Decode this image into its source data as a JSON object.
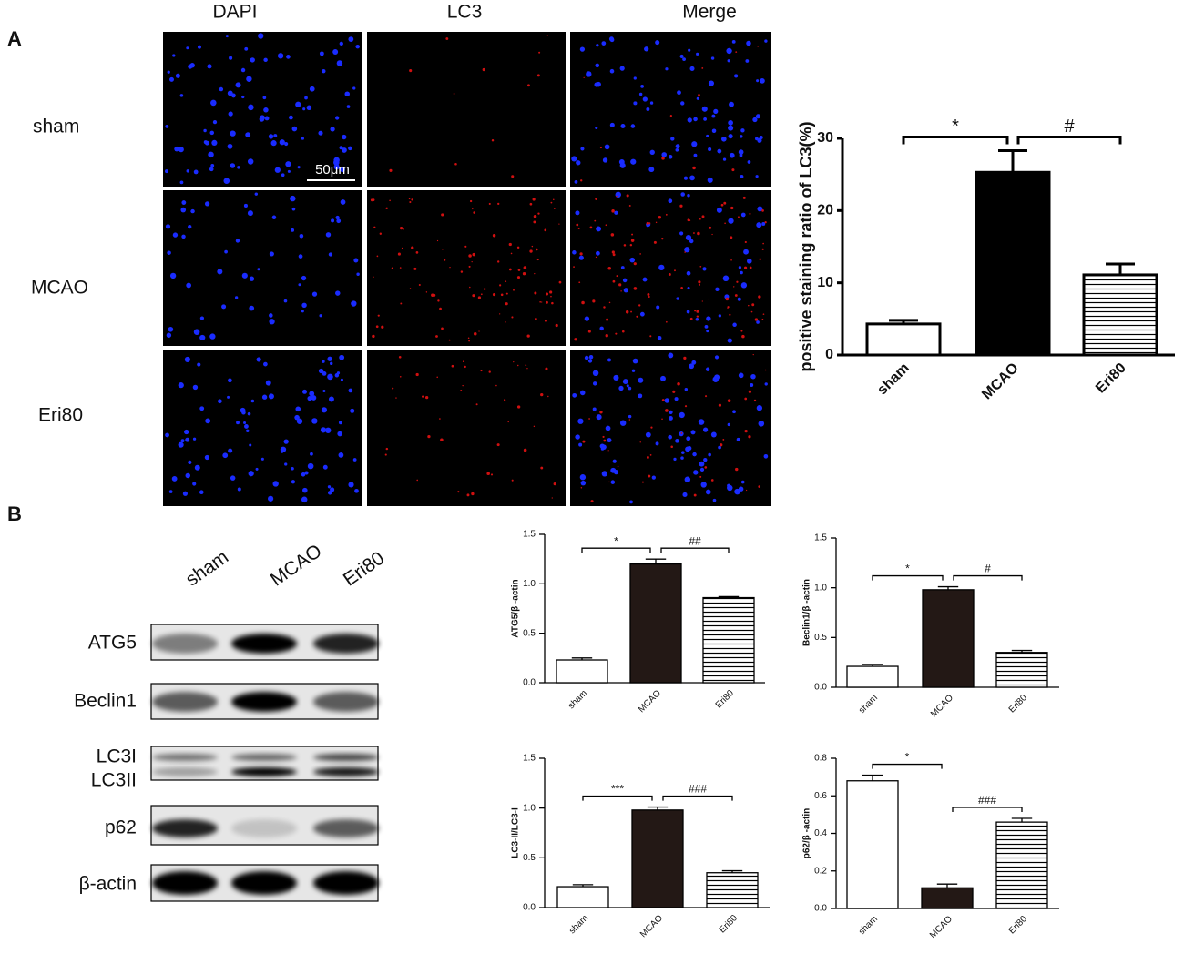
{
  "panel_labels": [
    "A",
    "B"
  ],
  "images": {
    "columns": [
      "DAPI",
      "LC3",
      "Merge"
    ],
    "rows": [
      "sham",
      "MCAO",
      "Eri80"
    ],
    "scale_bar": "50μm"
  },
  "blot": {
    "lanes": [
      "sham",
      "MCAO",
      "Eri80"
    ],
    "bands": [
      "ATG5",
      "Beclin1",
      "LC3I",
      "LC3II",
      "p62",
      "β-actin"
    ]
  },
  "chart_data": [
    {
      "type": "bar",
      "y_label": "positive staining ratio of LC3(%)",
      "categories": [
        "sham",
        "MCAO",
        "Eri80"
      ],
      "values": [
        4.3,
        25.3,
        11.1
      ],
      "errors": [
        0.5,
        3.0,
        1.5
      ],
      "color": "#000000",
      "fills": [
        "open",
        "solid",
        "hatched"
      ],
      "ylim": [
        0,
        30
      ],
      "yticks": [
        0,
        10,
        20,
        30
      ],
      "significance": [
        {
          "label": "*",
          "groups": [
            "sham",
            "MCAO"
          ]
        },
        {
          "label": "#",
          "groups": [
            "MCAO",
            "Eri80"
          ]
        }
      ]
    },
    {
      "type": "bar",
      "y_label": "ATG5/β -actin",
      "categories": [
        "sham",
        "MCAO",
        "Eri80"
      ],
      "values": [
        0.23,
        1.2,
        0.86
      ],
      "errors": [
        0.02,
        0.05,
        0.01
      ],
      "color": "#231815",
      "fills": [
        "open",
        "solid",
        "hatched"
      ],
      "ylim": [
        0,
        1.5
      ],
      "yticks": [
        {
          "value": 0,
          "label": "0.0"
        },
        {
          "value": 0.5,
          "label": "0.5"
        },
        {
          "value": 1,
          "label": "1.0"
        },
        {
          "value": 1.5,
          "label": "1.5"
        }
      ],
      "significance": [
        {
          "label": "*",
          "groups": [
            "sham",
            "MCAO"
          ]
        },
        {
          "label": "##",
          "groups": [
            "MCAO",
            "Eri80"
          ]
        }
      ]
    },
    {
      "type": "bar",
      "y_label": "Beclin1/β -actin",
      "categories": [
        "sham",
        "MCAO",
        "Eri80"
      ],
      "values": [
        0.21,
        0.98,
        0.35
      ],
      "errors": [
        0.02,
        0.03,
        0.02
      ],
      "color": "#231815",
      "fills": [
        "open",
        "solid",
        "hatched"
      ],
      "ylim": [
        0,
        1.5
      ],
      "yticks": [
        {
          "value": 0,
          "label": "0.0"
        },
        {
          "value": 0.5,
          "label": "0.5"
        },
        {
          "value": 1,
          "label": "1.0"
        },
        {
          "value": 1.5,
          "label": "1.5"
        }
      ],
      "significance": [
        {
          "label": "*",
          "groups": [
            "sham",
            "MCAO"
          ]
        },
        {
          "label": "#",
          "groups": [
            "MCAO",
            "Eri80"
          ]
        }
      ]
    },
    {
      "type": "bar",
      "y_label": "LC3-II/LC3-I",
      "categories": [
        "sham",
        "MCAO",
        "Eri80"
      ],
      "values": [
        0.21,
        0.98,
        0.35
      ],
      "errors": [
        0.02,
        0.03,
        0.02
      ],
      "color": "#231815",
      "fills": [
        "open",
        "solid",
        "hatched"
      ],
      "ylim": [
        0,
        1.5
      ],
      "yticks": [
        {
          "value": 0,
          "label": "0.0"
        },
        {
          "value": 0.5,
          "label": "0.5"
        },
        {
          "value": 1,
          "label": "1.0"
        },
        {
          "value": 1.5,
          "label": "1.5"
        }
      ],
      "significance": [
        {
          "label": "***",
          "groups": [
            "sham",
            "MCAO"
          ]
        },
        {
          "label": "###",
          "groups": [
            "MCAO",
            "Eri80"
          ]
        }
      ]
    },
    {
      "type": "bar",
      "y_label": "p62/β -actin",
      "categories": [
        "sham",
        "MCAO",
        "Eri80"
      ],
      "values": [
        0.68,
        0.11,
        0.46
      ],
      "errors": [
        0.03,
        0.02,
        0.02
      ],
      "color": "#231815",
      "fills": [
        "open",
        "solid",
        "hatched"
      ],
      "ylim": [
        0,
        0.8
      ],
      "yticks": [
        {
          "value": 0,
          "label": "0.0"
        },
        {
          "value": 0.2,
          "label": "0.2"
        },
        {
          "value": 0.4,
          "label": "0.4"
        },
        {
          "value": 0.6,
          "label": "0.6"
        },
        {
          "value": 0.8,
          "label": "0.8"
        }
      ],
      "significance": [
        {
          "label": "*",
          "groups": [
            "sham",
            "MCAO"
          ]
        },
        {
          "label": "###",
          "groups": [
            "MCAO",
            "Eri80"
          ]
        }
      ]
    }
  ]
}
